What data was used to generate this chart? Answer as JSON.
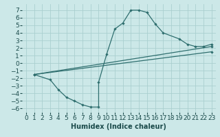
{
  "xlabel": "Humidex (Indice chaleur)",
  "xlim": [
    -0.5,
    23.5
  ],
  "ylim": [
    -6.5,
    7.8
  ],
  "xticks": [
    0,
    1,
    2,
    3,
    4,
    5,
    6,
    7,
    8,
    9,
    10,
    11,
    12,
    13,
    14,
    15,
    16,
    17,
    18,
    19,
    20,
    21,
    22,
    23
  ],
  "yticks": [
    -6,
    -5,
    -4,
    -3,
    -2,
    -1,
    0,
    1,
    2,
    3,
    4,
    5,
    6,
    7
  ],
  "bg_color": "#cce8e8",
  "line_color": "#2e6e6e",
  "grid_color": "#aacfcf",
  "curve_x": [
    1,
    3,
    4,
    5,
    6,
    7,
    8,
    9,
    9,
    10,
    11,
    12,
    13,
    14,
    15,
    16,
    17,
    19,
    20,
    21,
    22,
    23
  ],
  "curve_y": [
    -1.5,
    -2.2,
    -3.5,
    -4.5,
    -5.0,
    -5.5,
    -5.8,
    -5.8,
    -2.5,
    1.2,
    4.5,
    5.3,
    7.0,
    7.0,
    6.7,
    5.2,
    4.0,
    3.2,
    2.5,
    2.2,
    2.2,
    2.5
  ],
  "line2_x": [
    1,
    23
  ],
  "line2_y": [
    -1.5,
    2.2
  ],
  "line3_x": [
    1,
    23
  ],
  "line3_y": [
    -1.5,
    1.5
  ],
  "fontsize_xlabel": 7,
  "fontsize_ticks": 6.5
}
